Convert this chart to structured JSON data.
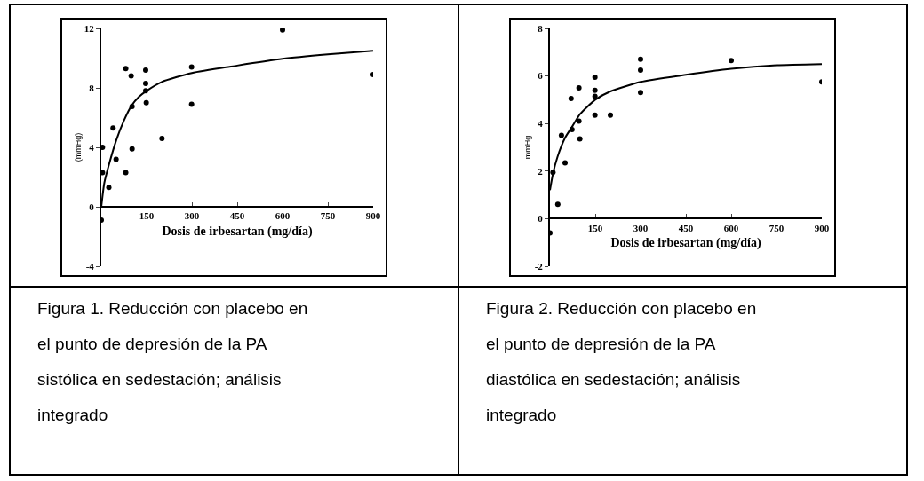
{
  "chart_data": [
    {
      "type": "scatter",
      "xlabel": "Dosis de irbesartan (mg/día)",
      "ylabel": "(mmHg)",
      "xlim": [
        0,
        900
      ],
      "ylim": [
        -4,
        12
      ],
      "xticks": [
        150,
        300,
        450,
        600,
        750,
        900
      ],
      "yticks": [
        -4,
        0,
        4,
        8,
        12
      ],
      "marker": "circle",
      "series": [
        {
          "type": "scatter",
          "color": "#000000",
          "x": [
            0,
            4,
            4,
            25,
            39,
            49,
            81,
            81,
            99,
            102,
            102,
            147,
            147,
            147,
            149,
            201,
            299,
            299,
            600,
            900
          ],
          "values": [
            -0.9,
            2.3,
            4.0,
            1.3,
            5.3,
            3.2,
            9.3,
            2.3,
            8.8,
            6.75,
            3.9,
            9.2,
            8.3,
            7.8,
            7.0,
            4.6,
            9.4,
            6.9,
            11.9,
            8.9
          ]
        },
        {
          "type": "line",
          "marker": "none",
          "color": "#000000",
          "x": [
            0,
            10,
            25,
            50,
            75,
            100,
            125,
            150,
            200,
            300,
            450,
            600,
            750,
            900
          ],
          "values": [
            0,
            1.6,
            2.8,
            4.5,
            5.8,
            6.8,
            7.4,
            7.8,
            8.4,
            9.0,
            9.5,
            9.95,
            10.25,
            10.5
          ]
        }
      ],
      "annotations": [
        "Figura 1. Reducción con placebo en el punto de depresión de la PA sistólica en sedestación; análisis integrado"
      ]
    },
    {
      "type": "scatter",
      "xlabel": "Dosis de irbesartan (mg/día)",
      "ylabel": "mmHg",
      "xlim": [
        0,
        900
      ],
      "ylim": [
        -2,
        8
      ],
      "xticks": [
        150,
        300,
        450,
        600,
        750,
        900
      ],
      "yticks": [
        -2,
        0,
        2,
        4,
        6,
        8
      ],
      "marker": "circle",
      "series": [
        {
          "type": "scatter",
          "color": "#000000",
          "x": [
            0,
            10,
            26,
            38,
            50,
            70,
            73,
            96,
            96,
            99,
            149,
            149,
            149,
            149,
            200,
            300,
            300,
            300,
            600,
            900
          ],
          "values": [
            -0.6,
            1.95,
            0.6,
            3.5,
            2.35,
            5.05,
            3.75,
            5.5,
            4.1,
            3.35,
            5.95,
            5.4,
            5.15,
            4.35,
            4.35,
            6.7,
            6.25,
            5.3,
            6.65,
            5.75
          ]
        },
        {
          "type": "line",
          "marker": "none",
          "color": "#000000",
          "x": [
            0,
            10,
            25,
            50,
            75,
            100,
            150,
            200,
            300,
            450,
            600,
            750,
            900
          ],
          "values": [
            1.2,
            1.9,
            2.6,
            3.4,
            3.9,
            4.4,
            5.0,
            5.35,
            5.75,
            6.05,
            6.3,
            6.45,
            6.5
          ]
        }
      ],
      "annotations": [
        "Figura 2. Reducción con placebo en el punto de depresión de la PA diastólica en sedestación; análisis integrado"
      ]
    }
  ]
}
